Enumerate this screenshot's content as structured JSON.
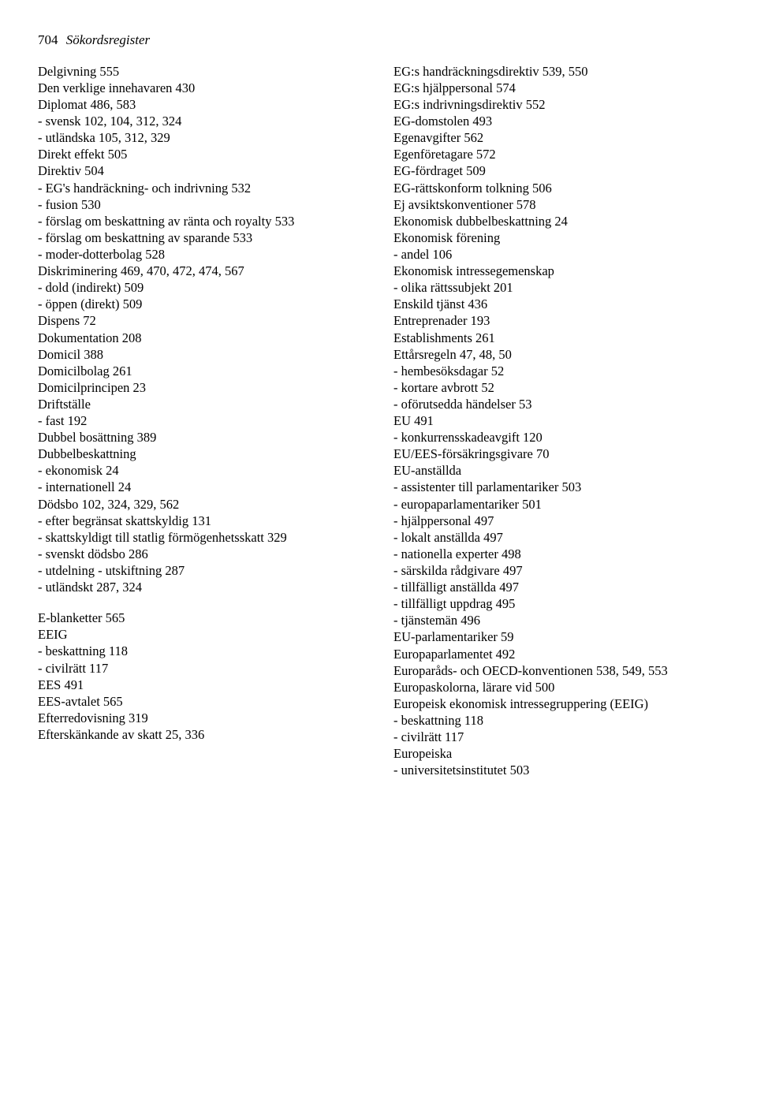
{
  "header": {
    "pagenum": "704",
    "title": "Sökordsregister"
  },
  "left": [
    {
      "t": "Delgivning 555"
    },
    {
      "t": "Den verklige innehavaren 430"
    },
    {
      "t": "Diplomat 486, 583"
    },
    {
      "t": "- svensk 102, 104, 312, 324",
      "s": true
    },
    {
      "t": "- utländska 105, 312, 329",
      "s": true
    },
    {
      "t": "Direkt effekt 505"
    },
    {
      "t": "Direktiv 504"
    },
    {
      "t": "- EG's handräckning- och indrivning 532",
      "s": true
    },
    {
      "t": "- fusion 530",
      "s": true
    },
    {
      "t": "- förslag om beskattning av ränta och royalty 533",
      "s": true
    },
    {
      "t": "- förslag om beskattning av sparande 533",
      "s": true
    },
    {
      "t": "- moder-dotterbolag 528",
      "s": true
    },
    {
      "t": "Diskriminering 469, 470, 472, 474, 567"
    },
    {
      "t": "- dold (indirekt) 509",
      "s": true
    },
    {
      "t": "- öppen (direkt) 509",
      "s": true
    },
    {
      "t": "Dispens 72"
    },
    {
      "t": "Dokumentation 208"
    },
    {
      "t": "Domicil 388"
    },
    {
      "t": "Domicilbolag 261"
    },
    {
      "t": "Domicilprincipen 23"
    },
    {
      "t": "Driftställe"
    },
    {
      "t": "- fast 192",
      "s": true
    },
    {
      "t": "Dubbel bosättning 389"
    },
    {
      "t": "Dubbelbeskattning"
    },
    {
      "t": "- ekonomisk 24",
      "s": true
    },
    {
      "t": "- internationell 24",
      "s": true
    },
    {
      "t": "Dödsbo 102, 324, 329, 562"
    },
    {
      "t": "- efter begränsat skattskyldig 131",
      "s": true
    },
    {
      "t": "- skattskyldigt till statlig förmögenhetsskatt 329",
      "s": true
    },
    {
      "t": "- svenskt dödsbo 286",
      "s": true
    },
    {
      "t": "- utdelning - utskiftning 287",
      "s": true
    },
    {
      "t": "- utländskt 287, 324",
      "s": true
    },
    {
      "t": "E-blanketter 565",
      "gap": true
    },
    {
      "t": "EEIG"
    },
    {
      "t": "- beskattning 118",
      "s": true
    },
    {
      "t": "- civilrätt 117",
      "s": true
    },
    {
      "t": "EES 491"
    },
    {
      "t": "EES-avtalet 565"
    },
    {
      "t": "Efterredovisning 319"
    },
    {
      "t": "Efterskänkande av skatt 25, 336"
    }
  ],
  "right": [
    {
      "t": "EG:s handräckningsdirektiv 539, 550"
    },
    {
      "t": "EG:s hjälppersonal 574"
    },
    {
      "t": "EG:s indrivningsdirektiv 552"
    },
    {
      "t": "EG-domstolen 493"
    },
    {
      "t": "Egenavgifter 562"
    },
    {
      "t": "Egenföretagare 572"
    },
    {
      "t": "EG-fördraget 509"
    },
    {
      "t": "EG-rättskonform tolkning 506"
    },
    {
      "t": "Ej avsiktskonventioner 578"
    },
    {
      "t": "Ekonomisk dubbelbeskattning 24"
    },
    {
      "t": "Ekonomisk förening"
    },
    {
      "t": "- andel 106",
      "s": true
    },
    {
      "t": "Ekonomisk intressegemenskap"
    },
    {
      "t": "- olika rättssubjekt 201",
      "s": true
    },
    {
      "t": "Enskild tjänst 436"
    },
    {
      "t": "Entreprenader 193"
    },
    {
      "t": "Establishments 261"
    },
    {
      "t": "Ettårsregeln 47, 48, 50"
    },
    {
      "t": "- hembesöksdagar 52",
      "s": true
    },
    {
      "t": "- kortare avbrott 52",
      "s": true
    },
    {
      "t": "- oförutsedda händelser 53",
      "s": true
    },
    {
      "t": "EU 491"
    },
    {
      "t": "- konkurrensskadeavgift 120",
      "s": true
    },
    {
      "t": "EU/EES-försäkringsgivare 70"
    },
    {
      "t": "EU-anställda"
    },
    {
      "t": "- assistenter till parlamentariker 503",
      "s": true
    },
    {
      "t": "- europaparlamentariker 501",
      "s": true
    },
    {
      "t": "- hjälppersonal 497",
      "s": true
    },
    {
      "t": "- lokalt anställda 497",
      "s": true
    },
    {
      "t": "- nationella experter 498",
      "s": true
    },
    {
      "t": "- särskilda rådgivare 497",
      "s": true
    },
    {
      "t": "- tillfälligt anställda 497",
      "s": true
    },
    {
      "t": "- tillfälligt uppdrag 495",
      "s": true
    },
    {
      "t": "- tjänstemän 496",
      "s": true
    },
    {
      "t": "EU-parlamentariker 59"
    },
    {
      "t": "Europaparlamentet 492"
    },
    {
      "t": "Europaråds- och OECD-konventionen 538, 549, 553"
    },
    {
      "t": "Europaskolorna, lärare vid 500"
    },
    {
      "t": "Europeisk ekonomisk intressegruppering (EEIG)"
    },
    {
      "t": "- beskattning 118",
      "s": true
    },
    {
      "t": "- civilrätt 117",
      "s": true
    },
    {
      "t": "Europeiska"
    },
    {
      "t": "- universitetsinstitutet 503",
      "s": true
    }
  ]
}
